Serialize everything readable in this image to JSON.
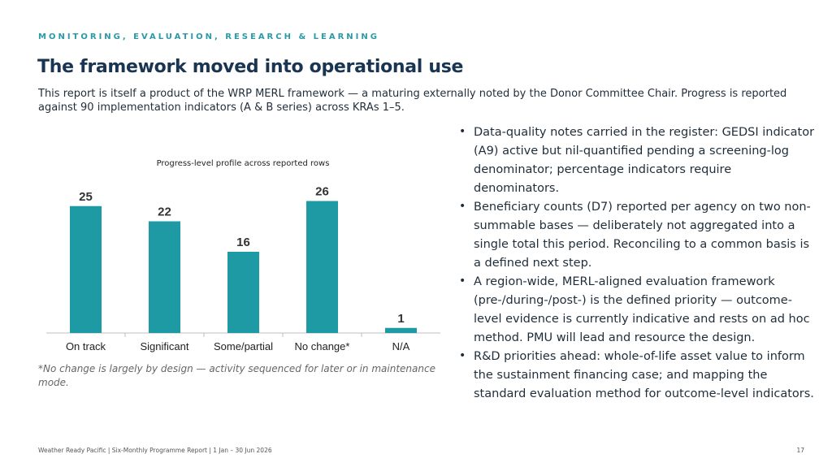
{
  "header": {
    "kicker": "MONITORING, EVALUATION, RESEARCH & LEARNING",
    "title": "The framework moved into operational use",
    "intro": "This report is itself a product of the WRP MERL framework — a maturing externally noted by the Donor Committee Chair. Progress is reported against 90 implementation indicators (A & B series) across KRAs 1–5."
  },
  "chart_data": {
    "type": "bar",
    "title": "Progress-level profile across reported rows",
    "categories": [
      "On track",
      "Significant",
      "Some/partial",
      "No change*",
      "N/A"
    ],
    "values": [
      25,
      22,
      16,
      26,
      1
    ],
    "xlabel": "",
    "ylabel": "",
    "ylim": [
      0,
      28
    ],
    "grid": false,
    "bar_color": "#1e9aa5"
  },
  "footnote": "*No change is largely by design — activity sequenced for later or in maintenance mode.",
  "bullets": [
    "Data-quality notes carried in the register: GEDSI indicator (A9) active but nil-quantified pending a screening-log denominator; percentage indicators require denominators.",
    "Beneficiary counts (D7) reported per agency on two non-summable bases — deliberately not aggregated into a single total this period. Reconciling to a common basis is a defined next step.",
    "A region-wide, MERL-aligned evaluation framework (pre-/during-/post-) is the defined priority — outcome-level evidence is currently indicative and rests on ad hoc method. PMU will lead and resource the design.",
    "R&D priorities ahead: whole-of-life asset value to inform the sustainment financing case; and mapping the standard evaluation method for outcome-level indicators."
  ],
  "bullet_symbol": "•",
  "footer": {
    "text": "Weather Ready Pacific  |  Six-Monthly Programme Report  |  1 Jan – 30 Jun 2026",
    "page": "17"
  },
  "colors": {
    "accent": "#2a9aa6",
    "title": "#1a3552",
    "bar": "#1e9aa5"
  }
}
